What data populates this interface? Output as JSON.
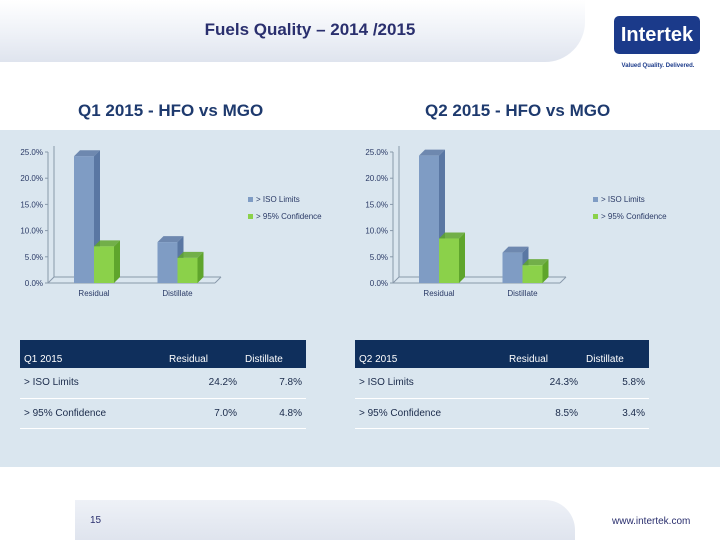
{
  "slide": {
    "title": "Fuels Quality – 2014 /2015",
    "logo_text": "Intertek",
    "tagline": "Valued Quality. Delivered.",
    "page_number": "15",
    "website": "www.intertek.com"
  },
  "colors": {
    "series1": "#7f9cc4",
    "series1_dark": "#5a77a3",
    "series2": "#8bd14a",
    "series2_dark": "#5fa52c",
    "axis": "#8899aa",
    "table_header": "#0f2f5c",
    "background": "#dae6ef"
  },
  "chart_data": [
    {
      "type": "bar",
      "title": "Q1 2015 - HFO vs MGO",
      "categories": [
        "Residual",
        "Distillate"
      ],
      "series": [
        {
          "name": "> ISO Limits",
          "values": [
            24.2,
            7.8
          ]
        },
        {
          "name": "> 95% Confidence",
          "values": [
            7.0,
            4.8
          ]
        }
      ],
      "ylim": [
        0,
        25
      ],
      "yticks": [
        "0.0%",
        "5.0%",
        "10.0%",
        "15.0%",
        "20.0%",
        "25.0%"
      ],
      "legend": "right"
    },
    {
      "type": "bar",
      "title": "Q2 2015 - HFO vs MGO",
      "categories": [
        "Residual",
        "Distillate"
      ],
      "series": [
        {
          "name": "> ISO Limits",
          "values": [
            24.3,
            5.8
          ]
        },
        {
          "name": "> 95% Confidence",
          "values": [
            8.5,
            3.4
          ]
        }
      ],
      "ylim": [
        0,
        25
      ],
      "yticks": [
        "0.0%",
        "5.0%",
        "10.0%",
        "15.0%",
        "20.0%",
        "25.0%"
      ],
      "legend": "right"
    }
  ],
  "tables": [
    {
      "headers": [
        "Q1 2015",
        "Residual",
        "Distillate"
      ],
      "rows": [
        [
          "> ISO Limits",
          "24.2%",
          "7.8%"
        ],
        [
          "> 95% Confidence",
          "7.0%",
          "4.8%"
        ]
      ]
    },
    {
      "headers": [
        "Q2 2015",
        "Residual",
        "Distillate"
      ],
      "rows": [
        [
          "> ISO Limits",
          "24.3%",
          "5.8%"
        ],
        [
          "> 95% Confidence",
          "8.5%",
          "3.4%"
        ]
      ]
    }
  ]
}
